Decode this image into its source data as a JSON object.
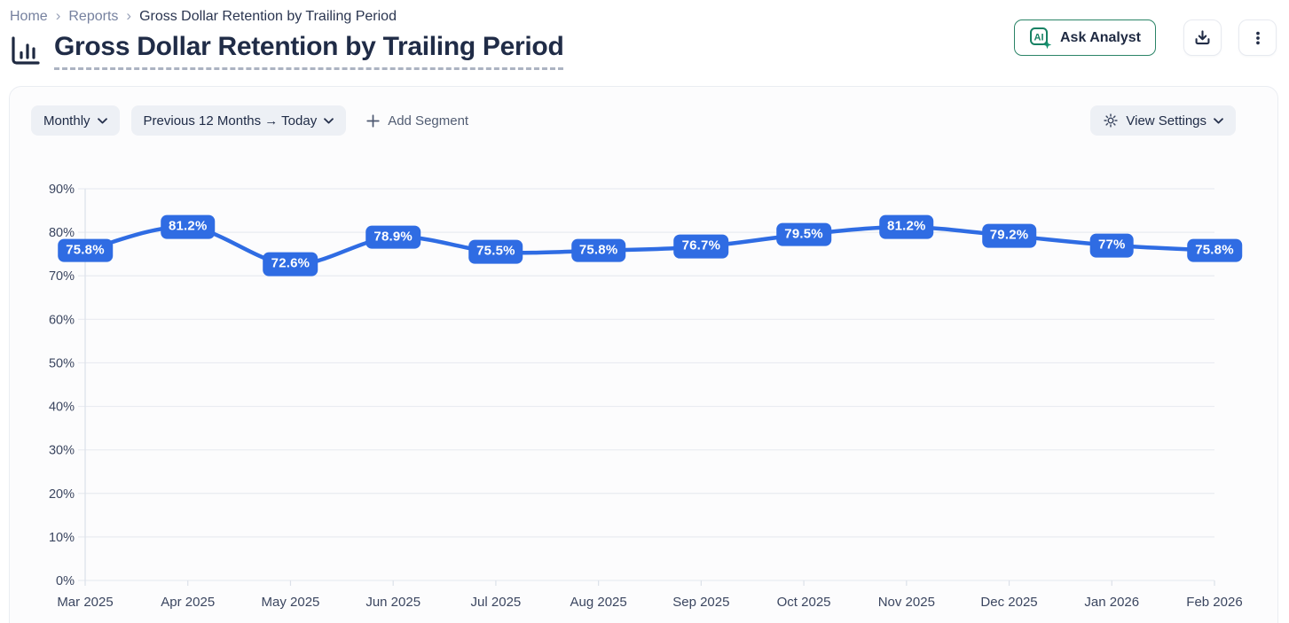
{
  "breadcrumb": {
    "items": [
      "Home",
      "Reports",
      "Gross Dollar Retention by Trailing Period"
    ],
    "separator": "›"
  },
  "header": {
    "title": "Gross Dollar Retention by Trailing Period",
    "ask_analyst_label": "Ask Analyst",
    "ai_badge_text": "AI"
  },
  "filters": {
    "granularity": "Monthly",
    "date_range": "Previous 12 Months → Today",
    "add_segment_label": "Add Segment",
    "view_settings_label": "View Settings"
  },
  "colors": {
    "accent_blue": "#2F6CE3",
    "accent_green": "#16805F",
    "axis_text": "#3B4660",
    "grid_line": "#E9EBF1",
    "axis_line": "#DCE1E9"
  },
  "chart_data": {
    "type": "line",
    "title": "Gross Dollar Retention by Trailing Period",
    "categories": [
      "Mar 2025",
      "Apr 2025",
      "May 2025",
      "Jun 2025",
      "Jul 2025",
      "Aug 2025",
      "Sep 2025",
      "Oct 2025",
      "Nov 2025",
      "Dec 2025",
      "Jan 2026",
      "Feb 2026"
    ],
    "values": [
      75.8,
      81.2,
      72.6,
      78.9,
      75.5,
      75.8,
      76.7,
      79.5,
      81.2,
      79.2,
      77,
      75.8
    ],
    "point_labels": [
      "75.8%",
      "81.2%",
      "72.6%",
      "78.9%",
      "75.5%",
      "75.8%",
      "76.7%",
      "79.5%",
      "81.2%",
      "79.2%",
      "77%",
      "75.8%"
    ],
    "ylim": [
      0,
      90
    ],
    "yticks": [
      0,
      10,
      20,
      30,
      40,
      50,
      60,
      70,
      80,
      90
    ],
    "ytick_labels": [
      "0%",
      "10%",
      "20%",
      "30%",
      "40%",
      "50%",
      "60%",
      "70%",
      "80%",
      "90%"
    ],
    "xlabel": "",
    "ylabel": "",
    "grid": true,
    "legend": "none",
    "line_color": "#2F6CE3",
    "label_style": "pill"
  }
}
